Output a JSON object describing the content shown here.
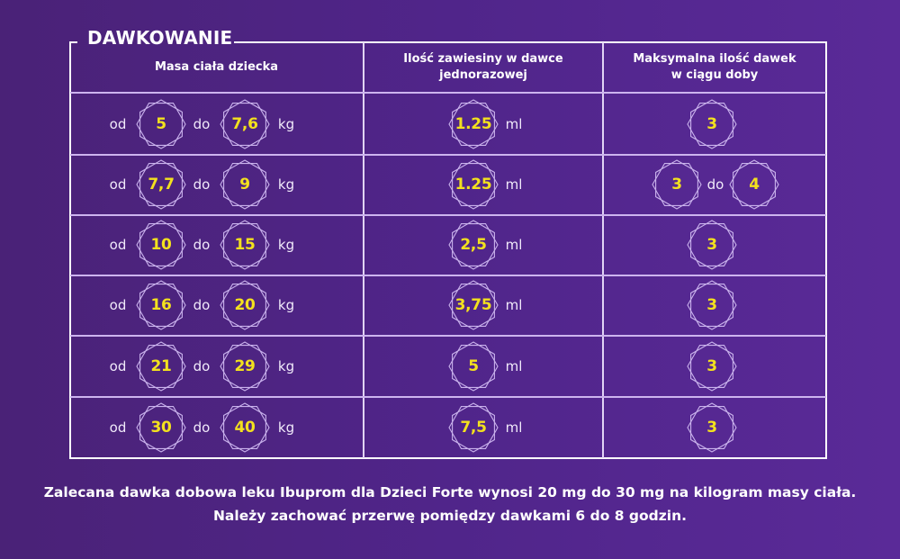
{
  "title": "DAWKOWANIE",
  "colors": {
    "background_left": "#4a2277",
    "background_right": "#5a2a98",
    "value_yellow": "#f3e11e",
    "border_white": "#ffffff",
    "row_divider": "#cdb4ef"
  },
  "table": {
    "headers": [
      {
        "line1": "Masa ciała dziecka",
        "line2": ""
      },
      {
        "line1": "Ilość zawiesiny w dawce",
        "line2": "jednorazowej"
      },
      {
        "line1": "Maksymalna ilość dawek",
        "line2": "w ciągu doby"
      }
    ],
    "labels": {
      "from": "od",
      "to": "do",
      "kg": "kg",
      "ml": "ml"
    },
    "rows": [
      {
        "weight_from": "5",
        "weight_to": "7,6",
        "dose_ml": "1.25",
        "max_from": "3",
        "max_to": ""
      },
      {
        "weight_from": "7,7",
        "weight_to": "9",
        "dose_ml": "1.25",
        "max_from": "3",
        "max_to": "4"
      },
      {
        "weight_from": "10",
        "weight_to": "15",
        "dose_ml": "2,5",
        "max_from": "3",
        "max_to": ""
      },
      {
        "weight_from": "16",
        "weight_to": "20",
        "dose_ml": "3,75",
        "max_from": "3",
        "max_to": ""
      },
      {
        "weight_from": "21",
        "weight_to": "29",
        "dose_ml": "5",
        "max_from": "3",
        "max_to": ""
      },
      {
        "weight_from": "30",
        "weight_to": "40",
        "dose_ml": "7,5",
        "max_from": "3",
        "max_to": ""
      }
    ]
  },
  "footer": {
    "line1": "Zalecana dawka dobowa leku Ibuprom dla Dzieci Forte wynosi 20 mg do 30 mg na kilogram masy ciała.",
    "line2": "Należy zachować przerwę pomiędzy dawkami 6 do 8 godzin."
  },
  "icons": {
    "badge": "double-hexagon-star-outline"
  }
}
